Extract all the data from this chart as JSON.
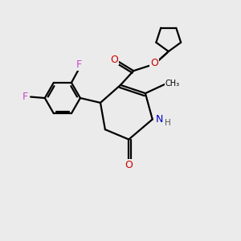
{
  "background_color": "#ebebeb",
  "bond_color": "#000000",
  "atom_colors": {
    "F": "#cc44cc",
    "O": "#cc0000",
    "N": "#0000cc",
    "H": "#555555",
    "C": "#000000"
  },
  "figsize": [
    3.0,
    3.0
  ],
  "dpi": 100
}
